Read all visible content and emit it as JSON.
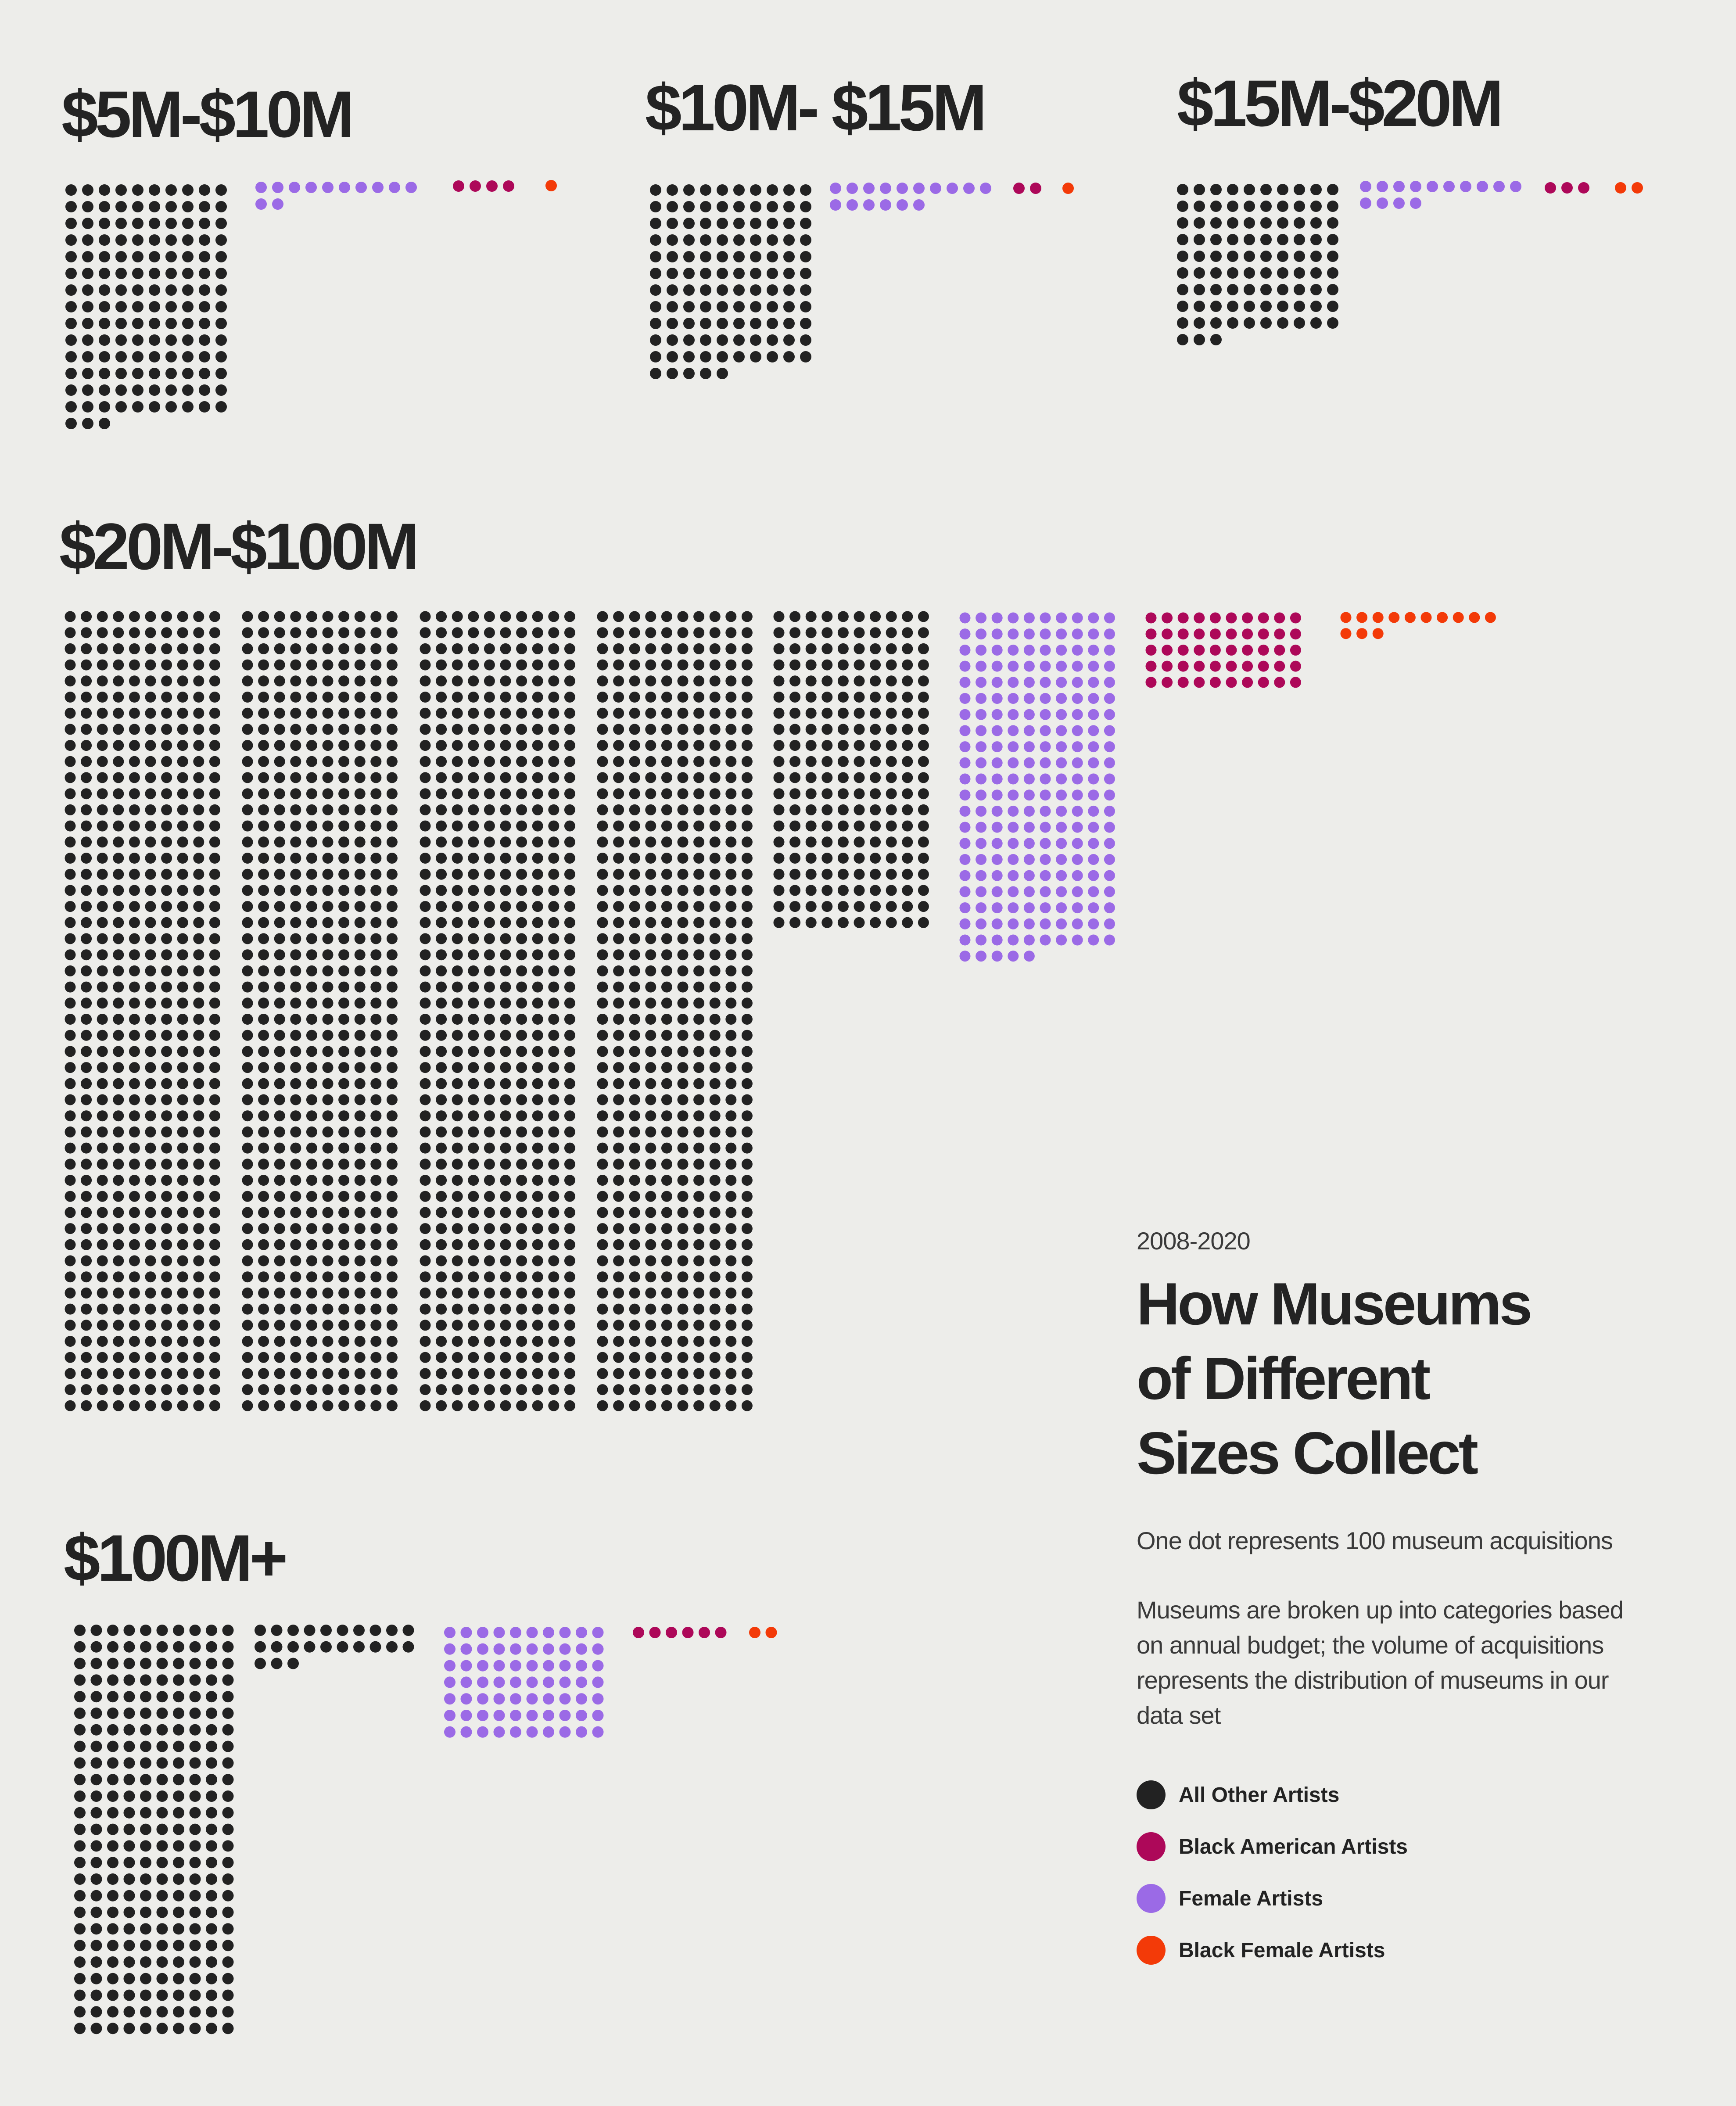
{
  "chart_data": {
    "type": "dot-matrix",
    "period": "2008-2020",
    "title": "How Museums of Different Sizes Collect",
    "title_lines": [
      "How Museums",
      "of Different",
      "Sizes Collect"
    ],
    "subtitle": "One dot represents 100 museum acquisitions",
    "note": "Museums are broken up into categories based on annual budget; the volume of acquisitions represents the distribution of museums in our data set",
    "dot_value": 100,
    "legend": [
      {
        "key": "all_other",
        "label": "All Other Artists",
        "color": "#222222"
      },
      {
        "key": "black_american",
        "label": "Black American Artists",
        "color": "#ad0859"
      },
      {
        "key": "female",
        "label": "Female Artists",
        "color": "#9b6ae6"
      },
      {
        "key": "black_female",
        "label": "Black Female Artists",
        "color": "#f33a08"
      }
    ],
    "groups": [
      {
        "label": "$5M-$10M",
        "dots": {
          "all_other": 143,
          "female": 12,
          "black_american": 4,
          "black_female": 1
        }
      },
      {
        "label": "$10M- $15M",
        "dots": {
          "all_other": 115,
          "female": 16,
          "black_american": 2,
          "black_female": 1
        }
      },
      {
        "label": "$15M-$20M",
        "dots": {
          "all_other": 93,
          "female": 14,
          "black_american": 3,
          "black_female": 2
        }
      },
      {
        "label": "$20M-$100M",
        "dots": {
          "all_other": 2200,
          "female": 215,
          "black_american": 50,
          "black_female": 13
        }
      },
      {
        "label": "$100M+",
        "dots": {
          "all_other": 273,
          "female": 70,
          "black_american": 6,
          "black_female": 2
        }
      }
    ]
  }
}
